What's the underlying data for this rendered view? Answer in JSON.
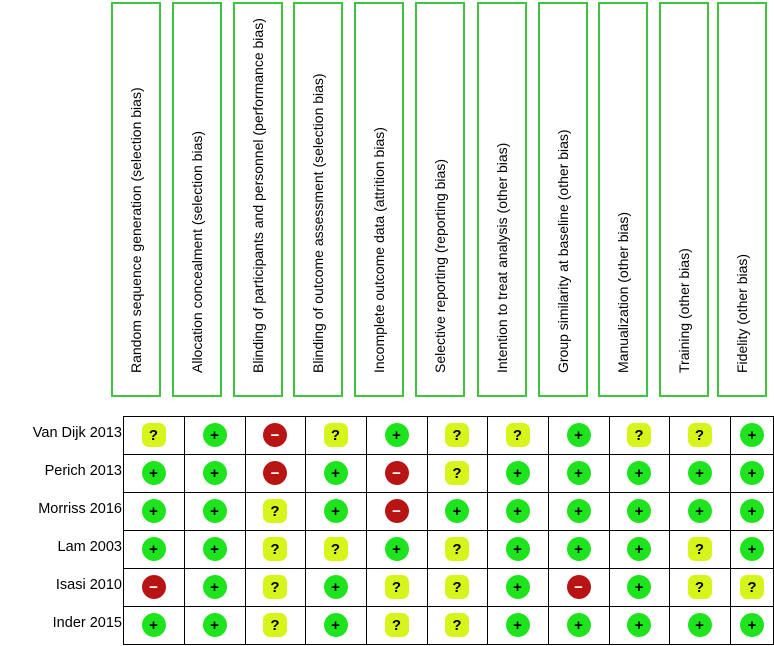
{
  "domains": [
    "Random sequence generation (selection bias)",
    "Allocation concealment (selection bias)",
    "Blinding of participants and personnel (performance bias)",
    "Blinding of outcome assessment (selection bias)",
    "Incomplete outcome data (attrition bias)",
    "Selective reporting (reporting bias)",
    "Intention to treat analysis (other bias)",
    "Group similarity at baseline (other bias)",
    "Manualization (other bias)",
    "Training (other bias)",
    "Fidelity (other bias)"
  ],
  "studies": [
    "Van Dijk 2013",
    "Perich 2013",
    "Morriss 2016",
    "Lam 2003",
    "Isasi 2010",
    "Inder 2015"
  ],
  "symbols": {
    "low": "+",
    "high": "−",
    "unclear": "?"
  },
  "colors": {
    "low": "#1ee41e",
    "high": "#b81414",
    "unclear": "#d7f51a",
    "header_border": "#3fc43f"
  },
  "judgements": [
    [
      "unclear",
      "low",
      "high",
      "unclear",
      "low",
      "unclear",
      "unclear",
      "low",
      "unclear",
      "unclear",
      "low"
    ],
    [
      "low",
      "low",
      "high",
      "low",
      "high",
      "unclear",
      "low",
      "low",
      "low",
      "low",
      "low"
    ],
    [
      "low",
      "low",
      "unclear",
      "low",
      "high",
      "low",
      "low",
      "low",
      "low",
      "low",
      "low"
    ],
    [
      "low",
      "low",
      "unclear",
      "unclear",
      "low",
      "unclear",
      "low",
      "low",
      "low",
      "unclear",
      "low"
    ],
    [
      "high",
      "low",
      "unclear",
      "low",
      "unclear",
      "unclear",
      "low",
      "high",
      "low",
      "unclear",
      "unclear"
    ],
    [
      "low",
      "low",
      "unclear",
      "low",
      "unclear",
      "unclear",
      "low",
      "low",
      "low",
      "low",
      "low"
    ]
  ]
}
